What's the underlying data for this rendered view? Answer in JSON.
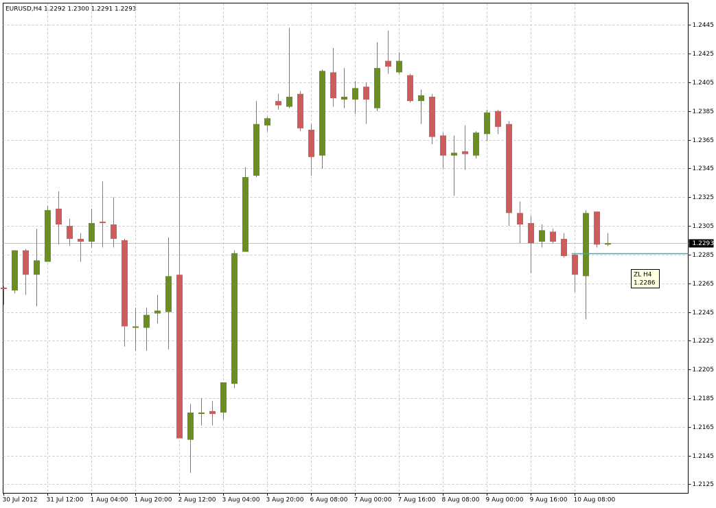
{
  "chart_data": {
    "type": "candlestick",
    "title": "EURUSD,H4  1.2292 1.2300 1.2291 1.2293",
    "categories": [
      "30 Jul 2012",
      null,
      null,
      null,
      "31 Jul 12:00",
      null,
      null,
      null,
      "1 Aug 04:00",
      null,
      null,
      null,
      "1 Aug 20:00",
      null,
      null,
      null,
      "2 Aug 12:00",
      null,
      null,
      null,
      "3 Aug 04:00",
      null,
      null,
      null,
      "3 Aug 20:00",
      null,
      null,
      null,
      "6 Aug 08:00",
      null,
      null,
      null,
      "7 Aug 00:00",
      null,
      null,
      null,
      "7 Aug 16:00",
      null,
      null,
      null,
      "8 Aug 08:00",
      null,
      null,
      null,
      "9 Aug 00:00",
      null,
      null,
      null,
      "9 Aug 16:00",
      null,
      null,
      null,
      "10 Aug 08:00",
      null,
      null,
      null
    ],
    "open": [
      1.2262,
      1.226,
      1.2288,
      1.2271,
      1.228,
      1.2317,
      1.2305,
      1.2296,
      1.2294,
      1.2308,
      1.2306,
      1.2295,
      1.2234,
      1.2234,
      1.2244,
      1.2245,
      1.2271,
      1.2156,
      1.2174,
      1.2176,
      1.2175,
      1.2195,
      1.2287,
      1.234,
      1.2375,
      1.2392,
      1.2388,
      1.2397,
      1.2372,
      1.2354,
      1.2412,
      1.2393,
      1.2393,
      1.2402,
      1.2387,
      1.242,
      1.2412,
      1.241,
      1.2392,
      1.2395,
      1.2368,
      1.2354,
      1.2357,
      1.2354,
      1.2369,
      1.2385,
      1.2376,
      1.2314,
      1.2307,
      1.2294,
      1.2301,
      1.2296,
      1.2285,
      1.227,
      1.2315,
      1.2292
    ],
    "high": [
      1.2263,
      1.2288,
      1.2289,
      1.2303,
      1.2319,
      1.2329,
      1.231,
      1.23,
      1.2317,
      1.2336,
      1.2325,
      1.2296,
      1.2248,
      1.2248,
      1.2257,
      1.2297,
      1.2405,
      1.2181,
      1.2185,
      1.2183,
      1.2196,
      1.2288,
      1.2346,
      1.2392,
      1.2381,
      1.2397,
      1.2443,
      1.2399,
      1.2376,
      1.2414,
      1.2429,
      1.2415,
      1.2406,
      1.2405,
      1.2433,
      1.2441,
      1.2426,
      1.2411,
      1.24,
      1.2397,
      1.237,
      1.2368,
      1.2375,
      1.2371,
      1.2386,
      1.2386,
      1.2378,
      1.2322,
      1.2312,
      1.2306,
      1.2303,
      1.23,
      1.2286,
      1.2316,
      1.2315,
      1.23
    ],
    "low": [
      1.225,
      1.2258,
      1.2257,
      1.2249,
      1.228,
      1.2292,
      1.2291,
      1.228,
      1.229,
      1.229,
      1.229,
      1.2221,
      1.2218,
      1.2218,
      1.2237,
      1.2219,
      1.2157,
      1.2133,
      1.2166,
      1.2166,
      1.217,
      1.2192,
      1.2287,
      1.2339,
      1.2371,
      1.2386,
      1.2387,
      1.2371,
      1.234,
      1.2345,
      1.2388,
      1.2387,
      1.2383,
      1.2376,
      1.2385,
      1.2411,
      1.2411,
      1.2391,
      1.2376,
      1.2362,
      1.2345,
      1.2326,
      1.2344,
      1.2352,
      1.2364,
      1.2369,
      1.2305,
      1.2293,
      1.2272,
      1.229,
      1.2293,
      1.2283,
      1.2259,
      1.224,
      1.229,
      1.2291
    ],
    "close": [
      1.2261,
      1.2288,
      1.2271,
      1.2281,
      1.2316,
      1.2306,
      1.2296,
      1.2294,
      1.2307,
      1.2307,
      1.2296,
      1.2235,
      1.2235,
      1.2243,
      1.2246,
      1.227,
      1.2157,
      1.2175,
      1.2175,
      1.2174,
      1.2196,
      1.2286,
      1.2339,
      1.2376,
      1.238,
      1.2389,
      1.2395,
      1.2373,
      1.2353,
      1.2413,
      1.2394,
      1.2395,
      1.2401,
      1.2393,
      1.2415,
      1.2416,
      1.242,
      1.2392,
      1.2396,
      1.2367,
      1.2354,
      1.2356,
      1.2355,
      1.237,
      1.2384,
      1.2374,
      1.2314,
      1.2306,
      1.2293,
      1.2302,
      1.2294,
      1.2284,
      1.2271,
      1.2314,
      1.2292,
      1.2293
    ],
    "up_color": "#6b8e23",
    "down_color": "#cd5c5c",
    "ylim": [
      1.2119,
      1.246
    ],
    "yticks": [
      1.2125,
      1.2145,
      1.2165,
      1.2185,
      1.2205,
      1.2225,
      1.2245,
      1.2265,
      1.2285,
      1.2305,
      1.2325,
      1.2345,
      1.2365,
      1.2385,
      1.2405,
      1.2425,
      1.2445
    ],
    "grid": true,
    "current_price": 1.2293,
    "level": {
      "name": "ZL H4",
      "value": 1.2286,
      "color": "#3aaeb6"
    }
  }
}
